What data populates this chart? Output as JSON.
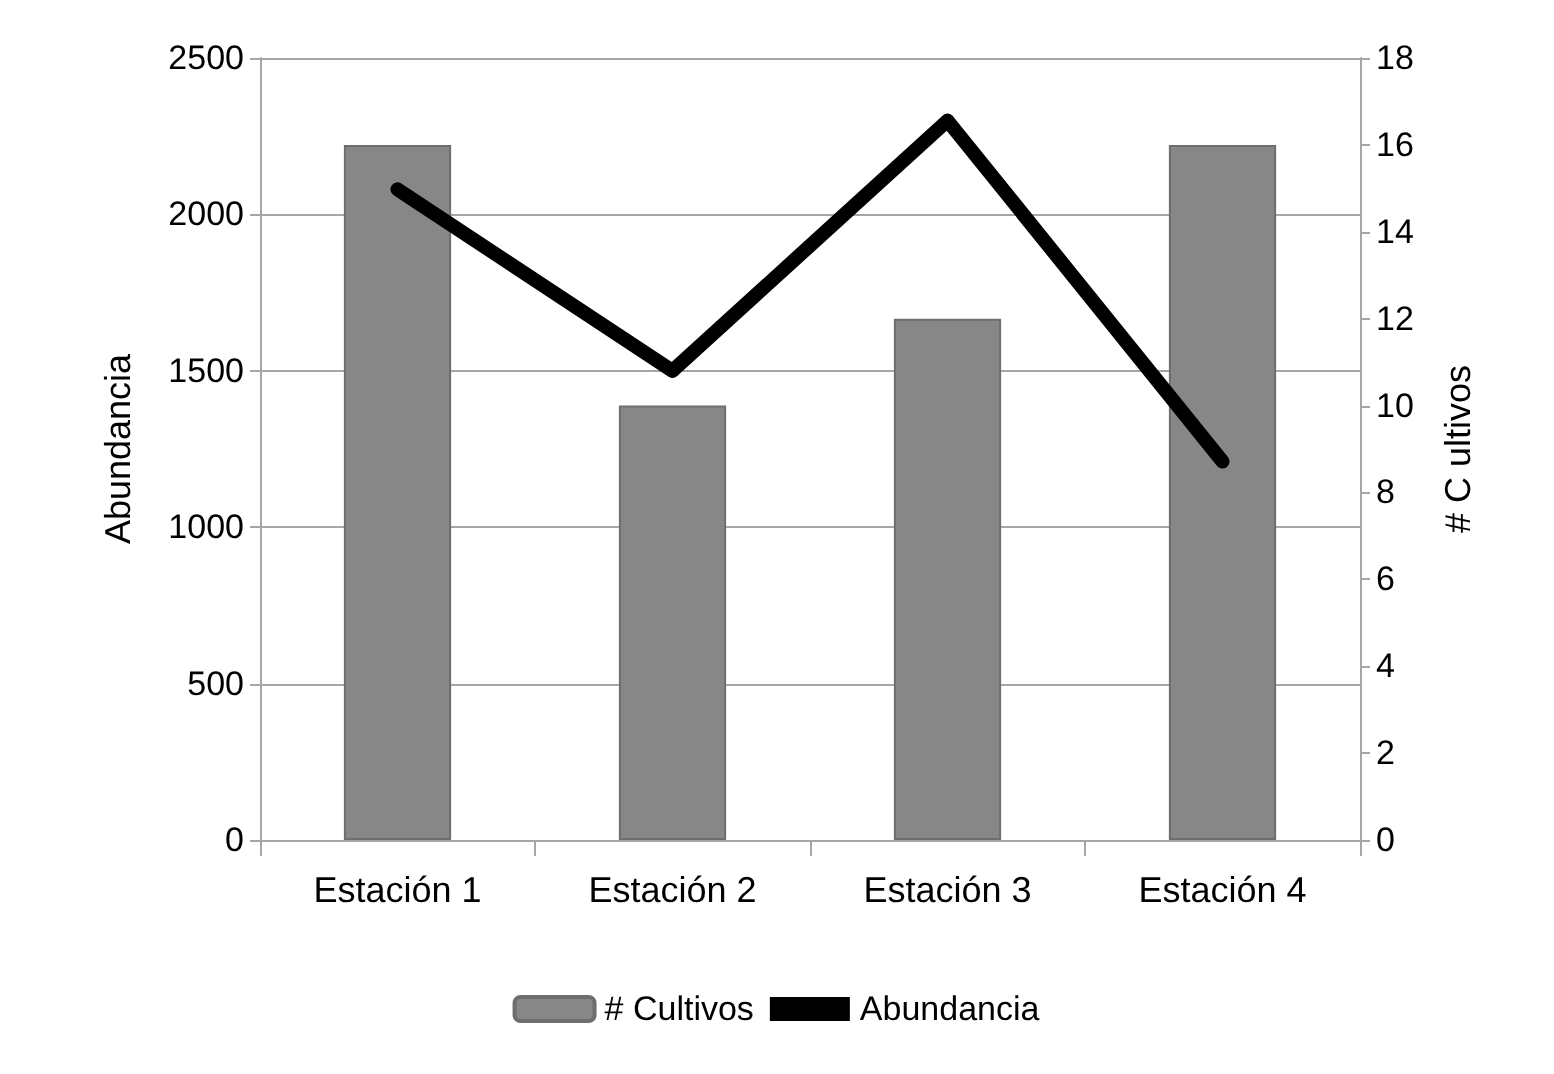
{
  "chart_data": {
    "type": "bar",
    "categories": [
      "Estación 1",
      "Estación 2",
      "Estación 3",
      "Estación 4"
    ],
    "series": [
      {
        "name": "# Cultivos",
        "axis": "y2",
        "color": "#878787",
        "values": [
          16,
          10,
          12,
          16
        ]
      },
      {
        "name": "Abundancia",
        "type": "line",
        "axis": "y",
        "color": "#000000",
        "values": [
          2080,
          1500,
          2300,
          1210
        ]
      }
    ],
    "ylabel": "Abundancia",
    "y2label": "# C ultivos",
    "ylim": [
      0,
      2500
    ],
    "yticks": [
      0,
      500,
      1000,
      1500,
      2000,
      2500
    ],
    "y2lim": [
      0,
      18
    ],
    "y2ticks": [
      0,
      2,
      4,
      6,
      8,
      10,
      12,
      14,
      16,
      18
    ],
    "grid": "y",
    "legend": "bottom",
    "marker": "none",
    "line_style": "solid"
  }
}
